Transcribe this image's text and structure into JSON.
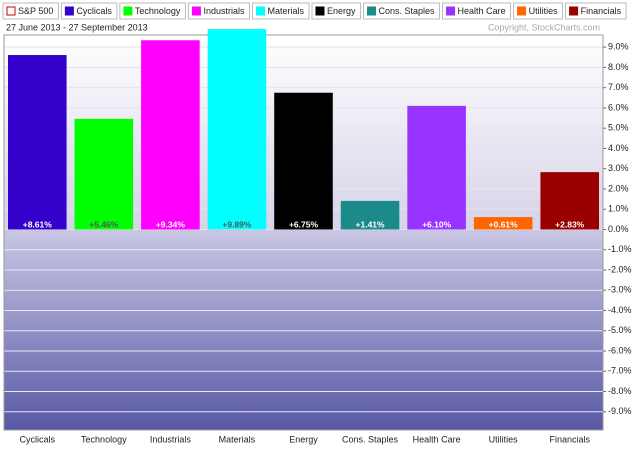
{
  "chart_data": {
    "type": "bar",
    "subtitle": "27 June 2013 - 27 September 2013",
    "annotation": "Copyright, StockCharts.com",
    "legend": [
      {
        "name": "S&P 500",
        "color": "#cc0000"
      },
      {
        "name": "Cyclicals",
        "color": "#3300cc"
      },
      {
        "name": "Technology",
        "color": "#00ff00"
      },
      {
        "name": "Industrials",
        "color": "#ff00ff"
      },
      {
        "name": "Materials",
        "color": "#00ffff"
      },
      {
        "name": "Energy",
        "color": "#000000"
      },
      {
        "name": "Cons. Staples",
        "color": "#1a8a8a"
      },
      {
        "name": "Health Care",
        "color": "#9933ff"
      },
      {
        "name": "Utilities",
        "color": "#ff6600"
      },
      {
        "name": "Financials",
        "color": "#990000"
      }
    ],
    "categories": [
      "Cyclicals",
      "Technology",
      "Industrials",
      "Materials",
      "Energy",
      "Cons. Staples",
      "Health Care",
      "Utilities",
      "Financials"
    ],
    "values": [
      8.61,
      5.46,
      9.34,
      9.89,
      6.75,
      1.41,
      6.1,
      0.61,
      2.83
    ],
    "value_labels": [
      "+8.61%",
      "+5.46%",
      "+9.34%",
      "+9.89%",
      "+6.75%",
      "+1.41%",
      "+6.10%",
      "+0.61%",
      "+2.83%"
    ],
    "colors": [
      "#3300cc",
      "#00ff00",
      "#ff00ff",
      "#00ffff",
      "#000000",
      "#1a8a8a",
      "#9933ff",
      "#ff6600",
      "#990000"
    ],
    "ylim": [
      -9.9,
      9.6
    ],
    "yticks": [
      {
        "value": 9,
        "label": "9.0%"
      },
      {
        "value": 8,
        "label": "8.0%"
      },
      {
        "value": 7,
        "label": "7.0%"
      },
      {
        "value": 6,
        "label": "6.0%"
      },
      {
        "value": 5,
        "label": "5.0%"
      },
      {
        "value": 4,
        "label": "4.0%"
      },
      {
        "value": 3,
        "label": "3.0%"
      },
      {
        "value": 2,
        "label": "2.0%"
      },
      {
        "value": 1,
        "label": "1.0%"
      },
      {
        "value": 0,
        "label": "0.0%"
      },
      {
        "value": -1,
        "label": "-1.0%"
      },
      {
        "value": -2,
        "label": "-2.0%"
      },
      {
        "value": -3,
        "label": "-3.0%"
      },
      {
        "value": -4,
        "label": "-4.0%"
      },
      {
        "value": -5,
        "label": "-5.0%"
      },
      {
        "value": -6,
        "label": "-6.0%"
      },
      {
        "value": -7,
        "label": "-7.0%"
      },
      {
        "value": -8,
        "label": "-8.0%"
      },
      {
        "value": -9,
        "label": "-9.0%"
      }
    ],
    "grid": true
  }
}
